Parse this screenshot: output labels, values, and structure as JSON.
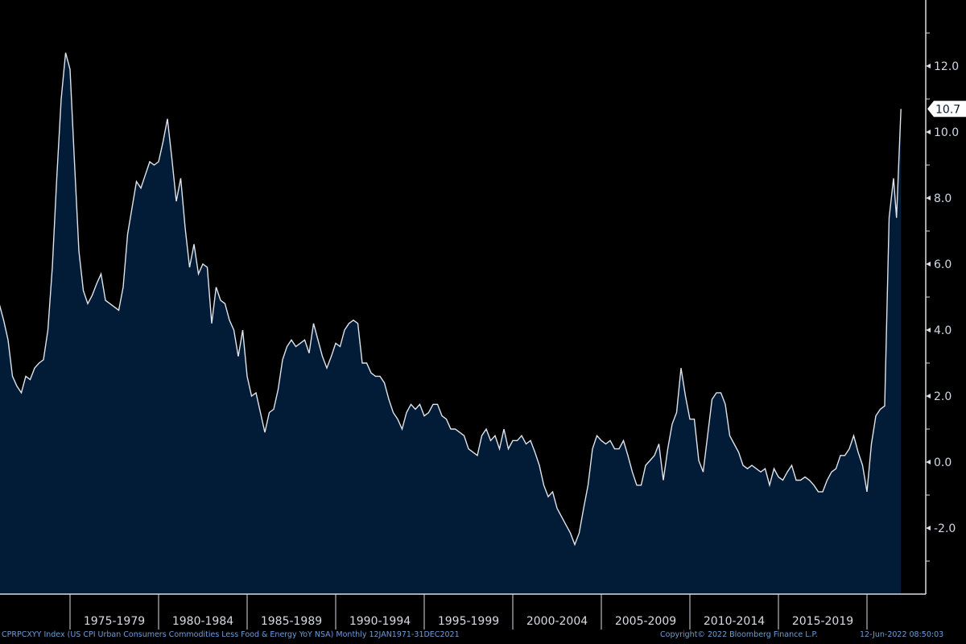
{
  "chart_data": {
    "type": "area",
    "title": "",
    "xlabel": "",
    "ylabel": "",
    "ylim": [
      -4,
      14
    ],
    "y_ticks": [
      -2,
      0,
      2,
      4,
      6,
      8,
      10,
      12
    ],
    "x_tick_labels": [
      "1975-1979",
      "1980-1984",
      "1985-1989",
      "1990-1994",
      "1995-1999",
      "2000-2004",
      "2005-2009",
      "2010-2014",
      "2015-2019"
    ],
    "last_value_label": "10.7",
    "grid": false,
    "colors": {
      "fill": "#021c38",
      "line": "#dfe3ea",
      "axis": "#d9dde3"
    },
    "x": [
      "1971-01",
      "1971-04",
      "1971-07",
      "1971-10",
      "1972-01",
      "1972-04",
      "1972-07",
      "1972-10",
      "1973-01",
      "1973-04",
      "1973-07",
      "1973-10",
      "1974-01",
      "1974-04",
      "1974-07",
      "1974-10",
      "1975-01",
      "1975-04",
      "1975-07",
      "1975-10",
      "1976-01",
      "1976-04",
      "1976-07",
      "1976-10",
      "1977-01",
      "1977-04",
      "1977-07",
      "1977-10",
      "1978-01",
      "1978-04",
      "1978-07",
      "1978-10",
      "1979-01",
      "1979-04",
      "1979-07",
      "1979-10",
      "1980-01",
      "1980-04",
      "1980-07",
      "1980-10",
      "1981-01",
      "1981-04",
      "1981-07",
      "1981-10",
      "1982-01",
      "1982-04",
      "1982-07",
      "1982-10",
      "1983-01",
      "1983-04",
      "1983-07",
      "1983-10",
      "1984-01",
      "1984-04",
      "1984-07",
      "1984-10",
      "1985-01",
      "1985-04",
      "1985-07",
      "1985-10",
      "1986-01",
      "1986-04",
      "1986-07",
      "1986-10",
      "1987-01",
      "1987-04",
      "1987-07",
      "1987-10",
      "1988-01",
      "1988-04",
      "1988-07",
      "1988-10",
      "1989-01",
      "1989-04",
      "1989-07",
      "1989-10",
      "1990-01",
      "1990-04",
      "1990-07",
      "1990-10",
      "1991-01",
      "1991-04",
      "1991-07",
      "1991-10",
      "1992-01",
      "1992-04",
      "1992-07",
      "1992-10",
      "1993-01",
      "1993-04",
      "1993-07",
      "1993-10",
      "1994-01",
      "1994-04",
      "1994-07",
      "1994-10",
      "1995-01",
      "1995-04",
      "1995-07",
      "1995-10",
      "1996-01",
      "1996-04",
      "1996-07",
      "1996-10",
      "1997-01",
      "1997-04",
      "1997-07",
      "1997-10",
      "1998-01",
      "1998-04",
      "1998-07",
      "1998-10",
      "1999-01",
      "1999-04",
      "1999-07",
      "1999-10",
      "2000-01",
      "2000-04",
      "2000-07",
      "2000-10",
      "2001-01",
      "2001-04",
      "2001-07",
      "2001-10",
      "2002-01",
      "2002-04",
      "2002-07",
      "2002-10",
      "2003-01",
      "2003-04",
      "2003-07",
      "2003-10",
      "2004-01",
      "2004-04",
      "2004-07",
      "2004-10",
      "2005-01",
      "2005-04",
      "2005-07",
      "2005-10",
      "2006-01",
      "2006-04",
      "2006-07",
      "2006-10",
      "2007-01",
      "2007-04",
      "2007-07",
      "2007-10",
      "2008-01",
      "2008-04",
      "2008-07",
      "2008-10",
      "2009-01",
      "2009-04",
      "2009-07",
      "2009-10",
      "2010-01",
      "2010-04",
      "2010-07",
      "2010-10",
      "2011-01",
      "2011-04",
      "2011-07",
      "2011-10",
      "2012-01",
      "2012-04",
      "2012-07",
      "2012-10",
      "2013-01",
      "2013-04",
      "2013-07",
      "2013-10",
      "2014-01",
      "2014-04",
      "2014-07",
      "2014-10",
      "2015-01",
      "2015-04",
      "2015-07",
      "2015-10",
      "2016-01",
      "2016-04",
      "2016-07",
      "2016-10",
      "2017-01",
      "2017-04",
      "2017-07",
      "2017-10",
      "2018-01",
      "2018-04",
      "2018-07",
      "2018-10",
      "2019-01",
      "2019-04",
      "2019-07",
      "2019-10",
      "2020-01",
      "2020-04",
      "2020-07",
      "2020-10",
      "2021-01",
      "2021-04",
      "2021-07",
      "2021-09",
      "2021-12"
    ],
    "series": [
      {
        "values": [
          4.8,
          4.3,
          3.7,
          2.6,
          2.3,
          2.1,
          2.6,
          2.5,
          2.85,
          3.0,
          3.1,
          4.0,
          5.9,
          8.6,
          11.0,
          12.4,
          11.9,
          9.1,
          6.4,
          5.2,
          4.8,
          5.05,
          5.4,
          5.7,
          4.9,
          4.8,
          4.7,
          4.6,
          5.3,
          6.9,
          7.7,
          8.5,
          8.3,
          8.7,
          9.1,
          9.0,
          9.1,
          9.7,
          10.4,
          9.2,
          7.9,
          8.6,
          7.1,
          5.9,
          6.6,
          5.7,
          6.0,
          5.9,
          4.2,
          5.3,
          4.9,
          4.8,
          4.3,
          4.0,
          3.2,
          4.0,
          2.6,
          2.0,
          2.1,
          1.5,
          0.9,
          1.5,
          1.6,
          2.2,
          3.1,
          3.5,
          3.7,
          3.5,
          3.6,
          3.7,
          3.3,
          4.2,
          3.7,
          3.2,
          2.85,
          3.2,
          3.6,
          3.5,
          4.0,
          4.2,
          4.3,
          4.2,
          3.0,
          3.0,
          2.7,
          2.6,
          2.6,
          2.4,
          1.9,
          1.5,
          1.3,
          1.0,
          1.5,
          1.75,
          1.6,
          1.75,
          1.4,
          1.5,
          1.75,
          1.75,
          1.4,
          1.3,
          1.0,
          1.0,
          0.9,
          0.8,
          0.4,
          0.3,
          0.2,
          0.8,
          1.0,
          0.65,
          0.8,
          0.4,
          1.0,
          0.4,
          0.65,
          0.65,
          0.8,
          0.55,
          0.65,
          0.3,
          -0.1,
          -0.7,
          -1.05,
          -0.9,
          -1.4,
          -1.65,
          -1.9,
          -2.15,
          -2.5,
          -2.15,
          -1.4,
          -0.7,
          0.4,
          0.8,
          0.65,
          0.55,
          0.65,
          0.4,
          0.4,
          0.65,
          0.2,
          -0.3,
          -0.7,
          -0.7,
          -0.1,
          0.05,
          0.2,
          0.55,
          -0.55,
          0.4,
          1.15,
          1.5,
          2.85,
          2.0,
          1.3,
          1.3,
          0.05,
          -0.3,
          0.8,
          1.9,
          2.1,
          2.1,
          1.75,
          0.8,
          0.55,
          0.3,
          -0.1,
          -0.2,
          -0.1,
          -0.2,
          -0.3,
          -0.2,
          -0.7,
          -0.2,
          -0.45,
          -0.55,
          -0.3,
          -0.1,
          -0.55,
          -0.55,
          -0.45,
          -0.55,
          -0.7,
          -0.9,
          -0.9,
          -0.55,
          -0.3,
          -0.2,
          0.2,
          0.2,
          0.4,
          0.8,
          0.3,
          -0.1,
          -0.9,
          0.55,
          1.4,
          1.6,
          1.7,
          7.4,
          8.6,
          7.4,
          10.7
        ]
      }
    ]
  },
  "footer": {
    "description": "CPRPCXYY Index (US CPI Urban Consumers Commodities Less Food & Energy YoY NSA)  Monthly 12JAN1971-31DEC2021",
    "copyright": "Copyright© 2022 Bloomberg Finance L.P.",
    "timestamp": "12-Jun-2022 08:50:03"
  }
}
